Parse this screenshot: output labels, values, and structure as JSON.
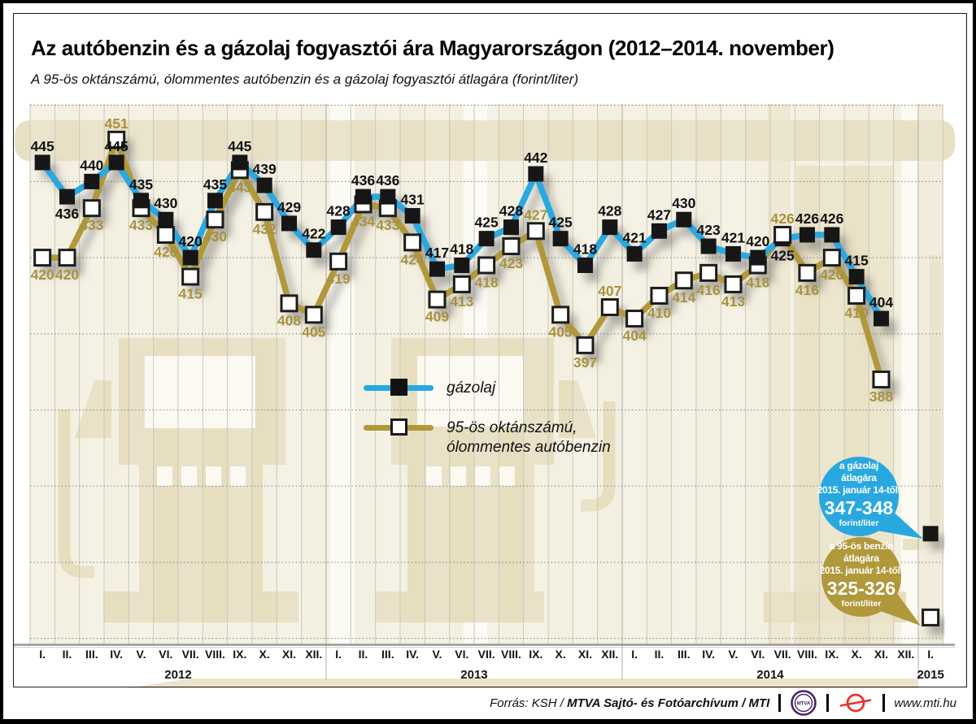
{
  "page": {
    "title": "Az autóbenzin és a gázolaj fogyasztói ára Magyarországon (2012–2014. november)",
    "subtitle": "A 95-ös oktánszámú, ólommentes autóbenzin és a gázolaj fogyasztói átlagára (forint/liter)"
  },
  "legend": {
    "diesel_label": "gázolaj",
    "petrol_label_line1": "95-ös oktánszámú,",
    "petrol_label_line2": "ólommentes autóbenzin"
  },
  "callouts": {
    "diesel": {
      "line1": "a gázolaj",
      "line2": "átlagára",
      "line3": "2015. január 14-től:",
      "value": "347-348",
      "unit": "forint/liter",
      "color": "#29a8e0"
    },
    "petrol": {
      "line1": "a 95-ös benzin",
      "line2": "átlagára",
      "line3": "2015. január 14-től:",
      "value": "325-326",
      "unit": "forint/liter",
      "color": "#b0983b"
    }
  },
  "footer": {
    "source_prefix": "Forrás: KSH / ",
    "source_bold": "MTVA Sajtó- és Fotóarchívum / MTI",
    "mtva_logo_text": "MTVA",
    "website": "www.mti.hu"
  },
  "chart_data": {
    "type": "line",
    "unit": "forint/liter",
    "x_tick_groups": [
      {
        "year": "2012",
        "months": [
          "I.",
          "II.",
          "III.",
          "IV.",
          "V.",
          "VI.",
          "VII.",
          "VIII.",
          "IX.",
          "X.",
          "XI.",
          "XII."
        ]
      },
      {
        "year": "2013",
        "months": [
          "I.",
          "II.",
          "III.",
          "IV.",
          "V.",
          "VI.",
          "VII.",
          "VIII.",
          "IX.",
          "X.",
          "XI.",
          "XII."
        ]
      },
      {
        "year": "2014",
        "months": [
          "I.",
          "II.",
          "III.",
          "IV.",
          "V.",
          "VI.",
          "VII.",
          "VIII.",
          "IX.",
          "X.",
          "XI.",
          "XII."
        ]
      },
      {
        "year": "2015",
        "months": [
          "I."
        ]
      }
    ],
    "series": [
      {
        "name": "gázolaj",
        "color": "#29a8e0",
        "marker": "black-square",
        "label_color": "#101010",
        "values": [
          445,
          436,
          440,
          445,
          435,
          430,
          420,
          435,
          445,
          439,
          429,
          422,
          428,
          436,
          436,
          431,
          417,
          418,
          425,
          428,
          442,
          425,
          418,
          428,
          421,
          427,
          430,
          423,
          421,
          420,
          425,
          426,
          426,
          415,
          404
        ]
      },
      {
        "name": "95-ös oktánszámú, ólommentes autóbenzin",
        "color": "#b0983b",
        "marker": "white-square",
        "label_color": "#a9923e",
        "values": [
          420,
          420,
          433,
          451,
          433,
          426,
          415,
          430,
          443,
          432,
          408,
          405,
          419,
          434,
          433,
          424,
          409,
          413,
          418,
          423,
          427,
          405,
          397,
          407,
          404,
          410,
          414,
          416,
          413,
          418,
          426,
          416,
          420,
          410,
          388
        ]
      }
    ],
    "extra_points_2015_january": [
      {
        "series_index": 0,
        "x_index": 36,
        "value": 347.5,
        "display": "347-348"
      },
      {
        "series_index": 1,
        "x_index": 36,
        "value": 325.5,
        "display": "325-326"
      }
    ],
    "y_gridlines": [
      320,
      340,
      360,
      380,
      400,
      420,
      440,
      460
    ],
    "ylim": [
      315,
      465
    ],
    "grid": "dotted-horizontal",
    "legend_position": "center-left",
    "label_layout": {
      "diesel_label_below": [
        1,
        30
      ],
      "petrol_label_above": [
        3,
        20,
        23,
        30
      ]
    }
  }
}
